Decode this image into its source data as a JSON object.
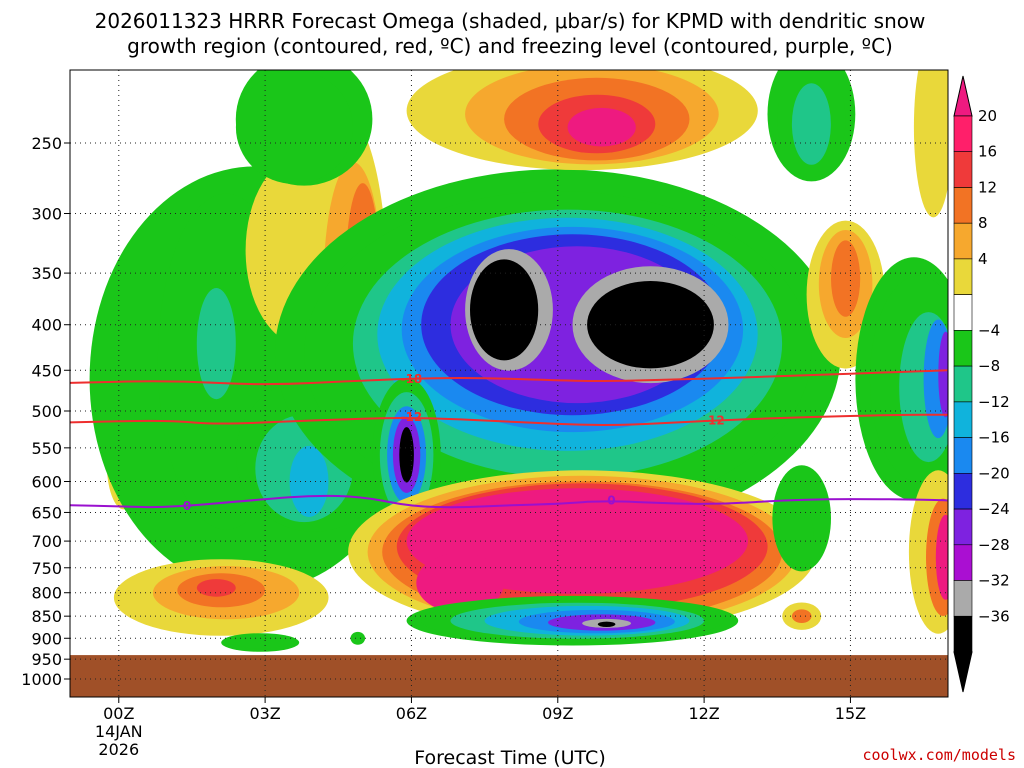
{
  "title_line1": "2026011323 HRRR Forecast Omega (shaded, μbar/s) for KPMD with dendritic snow",
  "title_line2": "growth region (contoured, red, ºC) and freezing level (contoured, purple, ºC)",
  "credit": "coolwx.com/models",
  "chart_data": {
    "type": "time-height contour",
    "xlabel": "Forecast Time (UTC)",
    "x_ticks": [
      {
        "hour": 0,
        "label": "00Z",
        "sub1": "14JAN",
        "sub2": "2026"
      },
      {
        "hour": 3,
        "label": "03Z",
        "sub1": "",
        "sub2": ""
      },
      {
        "hour": 6,
        "label": "06Z",
        "sub1": "",
        "sub2": ""
      },
      {
        "hour": 9,
        "label": "09Z",
        "sub1": "",
        "sub2": ""
      },
      {
        "hour": 12,
        "label": "12Z",
        "sub1": "",
        "sub2": ""
      },
      {
        "hour": 15,
        "label": "15Z",
        "sub1": "",
        "sub2": ""
      }
    ],
    "xlim": [
      -1,
      17
    ],
    "ylim": [
      1050,
      195
    ],
    "y_ticks": [
      250,
      300,
      350,
      400,
      450,
      500,
      550,
      600,
      650,
      700,
      750,
      800,
      850,
      900,
      950,
      1000
    ],
    "y_tick_labels": [
      "250",
      "300",
      "350",
      "400",
      "450",
      "500",
      "550",
      "600",
      "650",
      "700",
      "750",
      "800",
      "850",
      "900",
      "950",
      "1000"
    ],
    "grid": true,
    "terrain_top_hpa": 940,
    "colorbar": {
      "labels": [
        "20",
        "16",
        "12",
        "8",
        "4",
        "−4",
        "−8",
        "−12",
        "−16",
        "−20",
        "−24",
        "−28",
        "−32",
        "−36"
      ],
      "colors": [
        "#ff1f6a",
        "#ef3a3a",
        "#f27324",
        "#f6a82e",
        "#e9d83a",
        "#ffffff",
        "#1ac619",
        "#1fc689",
        "#10b3dc",
        "#1a89f0",
        "#2d2ddf",
        "#7e22e0",
        "#aa0fd2",
        "#aaaaaa",
        "#000000"
      ],
      "top_color": "#ee1a80",
      "bottom_color": "#000000"
    },
    "contours": [
      {
        "name": "-18",
        "label": "-18",
        "color": "#ee2e2e",
        "points": [
          [
            -1,
            465
          ],
          [
            1,
            462
          ],
          [
            3,
            468
          ],
          [
            5,
            462
          ],
          [
            7,
            458
          ],
          [
            9,
            462
          ],
          [
            10,
            463
          ],
          [
            12,
            460
          ],
          [
            14,
            456
          ],
          [
            16,
            452
          ],
          [
            17,
            450
          ]
        ]
      },
      {
        "name": "-12",
        "label": "-12",
        "color": "#ee2e2e",
        "points": [
          [
            -1,
            515
          ],
          [
            1,
            512
          ],
          [
            2,
            518
          ],
          [
            4,
            512
          ],
          [
            6,
            508
          ],
          [
            8,
            514
          ],
          [
            10,
            520
          ],
          [
            12,
            513
          ],
          [
            14,
            508
          ],
          [
            16,
            505
          ],
          [
            17,
            505
          ]
        ]
      },
      {
        "name": "0",
        "label": "0",
        "color": "#9a10cf",
        "points": [
          [
            -1,
            638
          ],
          [
            0,
            640
          ],
          [
            1,
            642
          ],
          [
            3,
            628
          ],
          [
            4,
            622
          ],
          [
            5,
            624
          ],
          [
            6,
            640
          ],
          [
            7,
            642
          ],
          [
            8,
            638
          ],
          [
            9,
            636
          ],
          [
            10,
            630
          ],
          [
            12,
            638
          ],
          [
            14,
            628
          ],
          [
            16,
            628
          ],
          [
            17,
            630
          ]
        ]
      }
    ],
    "omega_cells": [
      {
        "level": "4",
        "x": 0.1,
        "p": 570,
        "rx": 0.35,
        "rp": 70
      },
      {
        "level": "8",
        "x": 0.1,
        "p": 590,
        "rx": 0.2,
        "rp": 35
      },
      {
        "level": "-4",
        "x": 2.8,
        "p": 460,
        "rx": 3.4,
        "rp": 230
      },
      {
        "level": "-8",
        "x": 2.2,
        "p": 440,
        "rx": 1.4,
        "rp": 180
      },
      {
        "level": "-8",
        "x": 4.0,
        "p": 560,
        "rx": 1.6,
        "rp": 110
      },
      {
        "level": "-12",
        "x": 3.8,
        "p": 580,
        "rx": 1.0,
        "rp": 80
      },
      {
        "level": "-16",
        "x": 3.9,
        "p": 600,
        "rx": 0.4,
        "rp": 55
      },
      {
        "level": "-12",
        "x": 2.0,
        "p": 420,
        "rx": 0.4,
        "rp": 60
      },
      {
        "level": "4",
        "x": 3.8,
        "p": 330,
        "rx": 1.2,
        "rp": 80
      },
      {
        "level": "4",
        "x": 4.6,
        "p": 360,
        "rx": 0.9,
        "rp": 150
      },
      {
        "level": "8",
        "x": 4.8,
        "p": 360,
        "rx": 0.6,
        "rp": 110
      },
      {
        "level": "12",
        "x": 5.0,
        "p": 350,
        "rx": 0.35,
        "rp": 80
      },
      {
        "level": "16",
        "x": 5.0,
        "p": 380,
        "rx": 0.15,
        "rp": 30
      },
      {
        "level": "-4",
        "x": 3.8,
        "p": 235,
        "rx": 1.4,
        "rp": 40
      },
      {
        "level": "-8",
        "x": 3.6,
        "p": 240,
        "rx": 1.2,
        "rp": 35
      },
      {
        "level": "-4",
        "x": 9.0,
        "p": 430,
        "rx": 5.8,
        "rp": 190
      },
      {
        "level": "-8",
        "x": 9.0,
        "p": 430,
        "rx": 5.2,
        "rp": 170
      },
      {
        "level": "-12",
        "x": 9.2,
        "p": 420,
        "rx": 4.4,
        "rp": 140
      },
      {
        "level": "-16",
        "x": 9.2,
        "p": 410,
        "rx": 3.9,
        "rp": 120
      },
      {
        "level": "-20",
        "x": 9.3,
        "p": 405,
        "rx": 3.5,
        "rp": 105
      },
      {
        "level": "-24",
        "x": 9.3,
        "p": 400,
        "rx": 3.1,
        "rp": 92
      },
      {
        "level": "-28",
        "x": 9.4,
        "p": 400,
        "rx": 2.6,
        "rp": 80
      },
      {
        "level": "-32",
        "x": 8.0,
        "p": 385,
        "rx": 0.9,
        "rp": 60
      },
      {
        "level": "-36",
        "x": 7.9,
        "p": 385,
        "rx": 0.7,
        "rp": 50
      },
      {
        "level": "-32",
        "x": 10.9,
        "p": 400,
        "rx": 1.6,
        "rp": 60
      },
      {
        "level": "-36",
        "x": 10.9,
        "p": 400,
        "rx": 1.3,
        "rp": 45
      },
      {
        "level": "-4",
        "x": 5.9,
        "p": 560,
        "rx": 0.7,
        "rp": 110
      },
      {
        "level": "-12",
        "x": 5.9,
        "p": 560,
        "rx": 0.55,
        "rp": 90
      },
      {
        "level": "-20",
        "x": 5.9,
        "p": 560,
        "rx": 0.4,
        "rp": 70
      },
      {
        "level": "-28",
        "x": 5.9,
        "p": 560,
        "rx": 0.28,
        "rp": 55
      },
      {
        "level": "-36",
        "x": 5.9,
        "p": 560,
        "rx": 0.15,
        "rp": 40
      },
      {
        "level": "4",
        "x": 9.5,
        "p": 230,
        "rx": 3.6,
        "rp": 35
      },
      {
        "level": "8",
        "x": 9.7,
        "p": 232,
        "rx": 2.6,
        "rp": 30
      },
      {
        "level": "12",
        "x": 9.8,
        "p": 235,
        "rx": 1.9,
        "rp": 25
      },
      {
        "level": "16",
        "x": 9.8,
        "p": 238,
        "rx": 1.2,
        "rp": 18
      },
      {
        "level": "20",
        "x": 9.9,
        "p": 240,
        "rx": 0.7,
        "rp": 12
      },
      {
        "level": "-4",
        "x": 14.2,
        "p": 232,
        "rx": 0.9,
        "rp": 40
      },
      {
        "level": "-8",
        "x": 14.2,
        "p": 235,
        "rx": 0.7,
        "rp": 35
      },
      {
        "level": "-12",
        "x": 14.2,
        "p": 238,
        "rx": 0.4,
        "rp": 25
      },
      {
        "level": "4",
        "x": 14.9,
        "p": 370,
        "rx": 0.8,
        "rp": 70
      },
      {
        "level": "8",
        "x": 14.9,
        "p": 360,
        "rx": 0.55,
        "rp": 50
      },
      {
        "level": "12",
        "x": 14.9,
        "p": 355,
        "rx": 0.3,
        "rp": 35
      },
      {
        "level": "4",
        "x": 16.7,
        "p": 240,
        "rx": 0.4,
        "rp": 55
      },
      {
        "level": "-4",
        "x": 16.3,
        "p": 460,
        "rx": 1.2,
        "rp": 140
      },
      {
        "level": "-8",
        "x": 16.4,
        "p": 460,
        "rx": 1.0,
        "rp": 120
      },
      {
        "level": "-12",
        "x": 16.6,
        "p": 470,
        "rx": 0.6,
        "rp": 90
      },
      {
        "level": "-20",
        "x": 16.8,
        "p": 460,
        "rx": 0.3,
        "rp": 70
      },
      {
        "level": "-28",
        "x": 16.95,
        "p": 455,
        "rx": 0.15,
        "rp": 50
      },
      {
        "level": "4",
        "x": 9.5,
        "p": 720,
        "rx": 4.8,
        "rp": 150
      },
      {
        "level": "8",
        "x": 9.5,
        "p": 720,
        "rx": 4.4,
        "rp": 140
      },
      {
        "level": "12",
        "x": 9.5,
        "p": 720,
        "rx": 4.1,
        "rp": 130
      },
      {
        "level": "16",
        "x": 9.5,
        "p": 710,
        "rx": 3.8,
        "rp": 115
      },
      {
        "level": "20",
        "x": 9.4,
        "p": 700,
        "rx": 3.5,
        "rp": 95
      },
      {
        "level": "20",
        "x": 7.0,
        "p": 780,
        "rx": 0.9,
        "rp": 60
      },
      {
        "level": "-4",
        "x": 9.3,
        "p": 860,
        "rx": 3.4,
        "rp": 55
      },
      {
        "level": "-8",
        "x": 9.3,
        "p": 860,
        "rx": 3.1,
        "rp": 48
      },
      {
        "level": "-12",
        "x": 9.4,
        "p": 860,
        "rx": 2.6,
        "rp": 40
      },
      {
        "level": "-16",
        "x": 9.6,
        "p": 860,
        "rx": 2.1,
        "rp": 33
      },
      {
        "level": "-20",
        "x": 9.8,
        "p": 862,
        "rx": 1.6,
        "rp": 26
      },
      {
        "level": "-28",
        "x": 9.9,
        "p": 864,
        "rx": 1.1,
        "rp": 18
      },
      {
        "level": "-32",
        "x": 10.0,
        "p": 866,
        "rx": 0.5,
        "rp": 10
      },
      {
        "level": "-36",
        "x": 10.0,
        "p": 868,
        "rx": 0.18,
        "rp": 6
      },
      {
        "level": "4",
        "x": 2.1,
        "p": 810,
        "rx": 2.2,
        "rp": 80
      },
      {
        "level": "8",
        "x": 2.2,
        "p": 800,
        "rx": 1.5,
        "rp": 55
      },
      {
        "level": "12",
        "x": 2.1,
        "p": 795,
        "rx": 0.9,
        "rp": 35
      },
      {
        "level": "16",
        "x": 2.0,
        "p": 790,
        "rx": 0.4,
        "rp": 18
      },
      {
        "level": "-4",
        "x": 2.9,
        "p": 910,
        "rx": 0.8,
        "rp": 22
      },
      {
        "level": "-8",
        "x": 2.9,
        "p": 910,
        "rx": 0.5,
        "rp": 15
      },
      {
        "level": "-8",
        "x": 4.9,
        "p": 900,
        "rx": 0.15,
        "rp": 15
      },
      {
        "level": "-4",
        "x": 14.0,
        "p": 660,
        "rx": 0.6,
        "rp": 90
      },
      {
        "level": "-8",
        "x": 13.9,
        "p": 690,
        "rx": 0.35,
        "rp": 50
      },
      {
        "level": "4",
        "x": 14.0,
        "p": 850,
        "rx": 0.4,
        "rp": 30
      },
      {
        "level": "12",
        "x": 14.0,
        "p": 850,
        "rx": 0.2,
        "rp": 15
      },
      {
        "level": "4",
        "x": 16.8,
        "p": 720,
        "rx": 0.6,
        "rp": 150
      },
      {
        "level": "12",
        "x": 16.9,
        "p": 730,
        "rx": 0.35,
        "rp": 110
      },
      {
        "level": "20",
        "x": 16.95,
        "p": 730,
        "rx": 0.2,
        "rp": 80
      }
    ]
  }
}
